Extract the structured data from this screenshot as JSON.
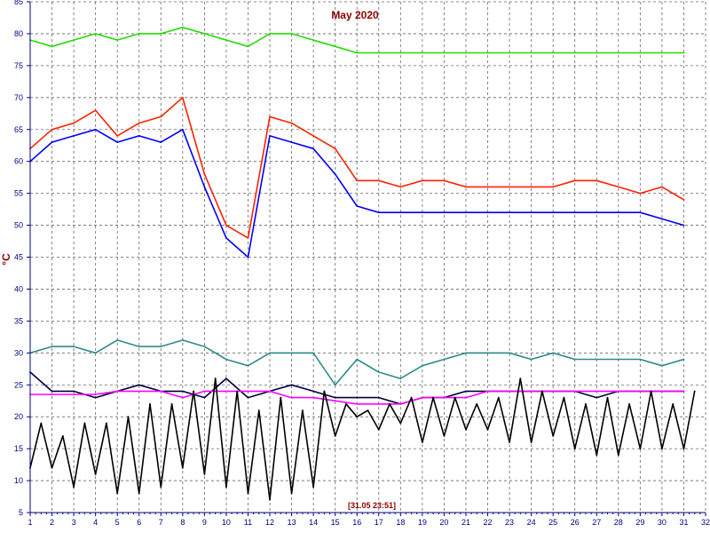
{
  "chart_data": {
    "type": "line",
    "title": "May 2020",
    "ylabel": "°C",
    "xlabel": "",
    "xlim": [
      1,
      32
    ],
    "ylim": [
      5,
      85
    ],
    "grid": true,
    "x_ticks": [
      1,
      2,
      3,
      4,
      5,
      6,
      7,
      8,
      9,
      10,
      11,
      12,
      13,
      14,
      15,
      16,
      17,
      18,
      19,
      20,
      21,
      22,
      23,
      24,
      25,
      26,
      27,
      28,
      29,
      30,
      31,
      32
    ],
    "y_ticks": [
      5,
      10,
      15,
      20,
      25,
      30,
      35,
      40,
      45,
      50,
      55,
      60,
      65,
      70,
      75,
      80,
      85
    ],
    "annotation": "[31.05 23:51]",
    "colors": {
      "green": "#22dd00",
      "yellow": "#ffff00",
      "red": "#ff2200",
      "olive": "#8b8000",
      "cyan": "#00e5e5",
      "blue": "#0000ff",
      "navy": "#000080",
      "purple": "#880088",
      "teal": "#2e8b8b",
      "dark": "#000040",
      "magenta": "#ff00ff",
      "black": "#000000"
    },
    "series": [
      {
        "color": "#22dd00",
        "x": [
          1,
          2,
          3,
          4,
          5,
          6,
          7,
          8,
          9,
          10,
          11,
          12,
          13,
          14,
          15,
          16,
          17,
          18,
          19,
          20,
          21,
          22,
          23,
          24,
          25,
          26,
          27,
          28,
          29,
          30,
          31
        ],
        "y": [
          79,
          78,
          79,
          80,
          79,
          80,
          80,
          81,
          80,
          79,
          78,
          80,
          80,
          79,
          78,
          77,
          77,
          77,
          77,
          77,
          77,
          77,
          77,
          77,
          77,
          77,
          77,
          77,
          77,
          77,
          77
        ]
      },
      {
        "color": "#ff2200",
        "x": [
          1,
          2,
          3,
          4,
          5,
          6,
          7,
          8,
          9,
          10,
          11,
          12,
          13,
          14,
          15,
          16,
          17,
          18,
          19,
          20,
          21,
          22,
          23,
          24,
          25,
          26,
          27,
          28,
          29,
          30,
          31
        ],
        "y": [
          62,
          65,
          66,
          68,
          64,
          66,
          67,
          70,
          58,
          50,
          48,
          67,
          66,
          64,
          62,
          57,
          57,
          56,
          57,
          57,
          56,
          56,
          56,
          56,
          56,
          57,
          57,
          56,
          55,
          56,
          54
        ]
      },
      {
        "color": "#0000ff",
        "x": [
          1,
          2,
          3,
          4,
          5,
          6,
          7,
          8,
          9,
          10,
          11,
          12,
          13,
          14,
          15,
          16,
          17,
          18,
          19,
          20,
          21,
          22,
          23,
          24,
          25,
          26,
          27,
          28,
          29,
          30,
          31
        ],
        "y": [
          60,
          63,
          64,
          65,
          63,
          64,
          63,
          65,
          56,
          48,
          45,
          64,
          63,
          62,
          58,
          53,
          52,
          52,
          52,
          52,
          52,
          52,
          52,
          52,
          52,
          52,
          52,
          52,
          52,
          51,
          50
        ]
      },
      {
        "color": "#000040",
        "x": [
          1,
          2,
          3,
          4,
          5,
          6,
          7,
          8,
          9,
          10,
          11,
          12,
          13,
          14,
          15,
          16,
          17,
          18,
          19,
          20,
          21,
          22,
          23,
          24,
          25,
          26,
          27,
          28,
          29,
          30,
          31
        ],
        "y": [
          27,
          24,
          24,
          23,
          24,
          25,
          24,
          24,
          23,
          26,
          23,
          24,
          25,
          24,
          23,
          23,
          23,
          22,
          23,
          23,
          24,
          24,
          24,
          24,
          24,
          24,
          23,
          24,
          24,
          24,
          24
        ]
      },
      {
        "color": "#2e8b8b",
        "x": [
          1,
          2,
          3,
          4,
          5,
          6,
          7,
          8,
          9,
          10,
          11,
          12,
          13,
          14,
          15,
          16,
          17,
          18,
          19,
          20,
          21,
          22,
          23,
          24,
          25,
          26,
          27,
          28,
          29,
          30,
          31
        ],
        "y": [
          30,
          31,
          31,
          30,
          32,
          31,
          31,
          32,
          31,
          29,
          28,
          30,
          30,
          30,
          25,
          29,
          27,
          26,
          28,
          29,
          30,
          30,
          30,
          29,
          30,
          29,
          29,
          29,
          29,
          28,
          29
        ]
      },
      {
        "color": "#ff00ff",
        "x": [
          1,
          2,
          3,
          4,
          5,
          6,
          7,
          8,
          9,
          10,
          11,
          12,
          13,
          14,
          15,
          16,
          17,
          18,
          19,
          20,
          21,
          22,
          23,
          24,
          25,
          26,
          27,
          28,
          29,
          30,
          31
        ],
        "y": [
          23.5,
          23.5,
          23.5,
          23.5,
          24,
          24,
          24,
          23,
          24,
          24,
          24,
          24,
          23,
          23,
          22.5,
          22,
          22,
          22,
          23,
          23,
          23,
          24,
          24,
          24,
          24,
          24,
          24,
          24,
          24,
          24,
          24
        ]
      },
      {
        "color": "#000000",
        "x": [
          1,
          1.5,
          2,
          2.5,
          3,
          3.5,
          4,
          4.5,
          5,
          5.5,
          6,
          6.5,
          7,
          7.5,
          8,
          8.5,
          9,
          9.5,
          10,
          10.5,
          11,
          11.5,
          12,
          12.5,
          13,
          13.5,
          14,
          14.5,
          15,
          15.5,
          16,
          16.5,
          17,
          17.5,
          18,
          18.5,
          19,
          19.5,
          20,
          20.5,
          21,
          21.5,
          22,
          22.5,
          23,
          23.5,
          24,
          24.5,
          25,
          25.5,
          26,
          26.5,
          27,
          27.5,
          28,
          28.5,
          29,
          29.5,
          30,
          30.5,
          31,
          31.5
        ],
        "y": [
          12,
          19,
          12,
          17,
          9,
          19,
          11,
          19,
          8,
          20,
          8,
          22,
          9,
          22,
          12,
          24,
          11,
          26,
          9,
          24,
          8,
          21,
          7,
          23,
          8,
          21,
          9,
          24,
          17,
          22,
          20,
          21,
          18,
          22,
          19,
          23,
          16,
          23,
          17,
          23,
          18,
          22,
          18,
          23,
          16,
          26,
          16,
          24,
          17,
          23,
          15,
          22,
          14,
          23,
          14,
          22,
          15,
          24,
          15,
          22,
          15,
          24
        ]
      }
    ]
  }
}
